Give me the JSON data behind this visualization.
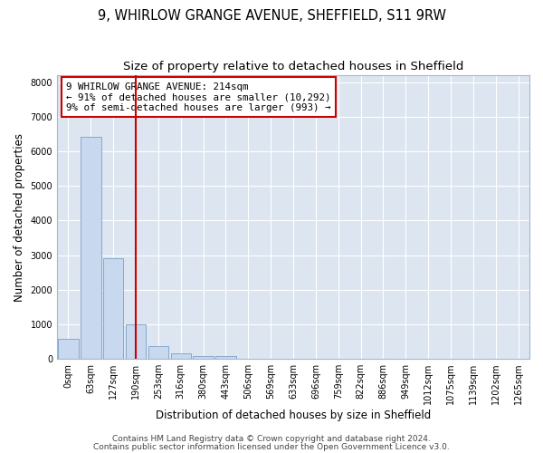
{
  "title_line1": "9, WHIRLOW GRANGE AVENUE, SHEFFIELD, S11 9RW",
  "title_line2": "Size of property relative to detached houses in Sheffield",
  "xlabel": "Distribution of detached houses by size in Sheffield",
  "ylabel": "Number of detached properties",
  "bar_labels": [
    "0sqm",
    "63sqm",
    "127sqm",
    "190sqm",
    "253sqm",
    "316sqm",
    "380sqm",
    "443sqm",
    "506sqm",
    "569sqm",
    "633sqm",
    "696sqm",
    "759sqm",
    "822sqm",
    "886sqm",
    "949sqm",
    "1012sqm",
    "1075sqm",
    "1139sqm",
    "1202sqm",
    "1265sqm"
  ],
  "bar_values": [
    570,
    6430,
    2920,
    990,
    360,
    160,
    90,
    70,
    0,
    0,
    0,
    0,
    0,
    0,
    0,
    0,
    0,
    0,
    0,
    0,
    0
  ],
  "bar_color": "#c8d8ee",
  "bar_edge_color": "#7aa0c8",
  "vline_x": 3.0,
  "vline_color": "#cc0000",
  "annotation_text": "9 WHIRLOW GRANGE AVENUE: 214sqm\n← 91% of detached houses are smaller (10,292)\n9% of semi-detached houses are larger (993) →",
  "annotation_box_color": "#ffffff",
  "annotation_box_edge": "#cc0000",
  "ylim": [
    0,
    8200
  ],
  "yticks": [
    0,
    1000,
    2000,
    3000,
    4000,
    5000,
    6000,
    7000,
    8000
  ],
  "footer_line1": "Contains HM Land Registry data © Crown copyright and database right 2024.",
  "footer_line2": "Contains public sector information licensed under the Open Government Licence v3.0.",
  "fig_background": "#ffffff",
  "plot_background": "#dde6f0",
  "grid_color": "#ffffff",
  "title_fontsize": 10.5,
  "subtitle_fontsize": 9.5,
  "ylabel_fontsize": 8.5,
  "xlabel_fontsize": 8.5,
  "tick_fontsize": 7,
  "footer_fontsize": 6.5
}
